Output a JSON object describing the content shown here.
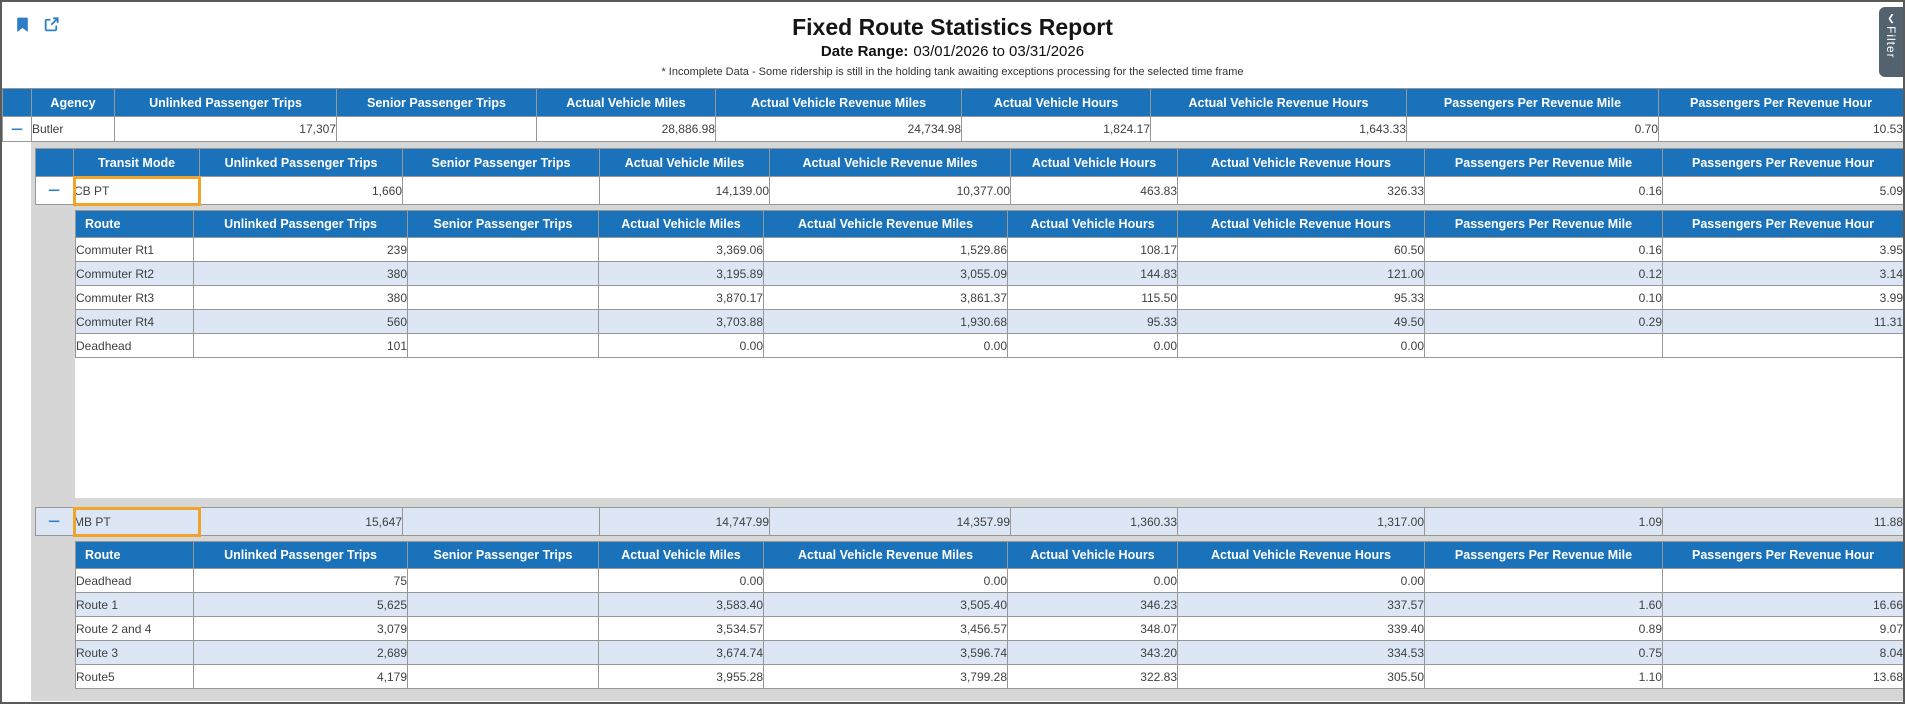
{
  "page": {
    "title": "Fixed Route Statistics Report",
    "date_range": {
      "label": "Date Range:",
      "from": "03/01/2026",
      "to_word": "to",
      "to": "03/31/2026"
    },
    "note": "* Incomplete Data - Some ridership is still in the holding tank awaiting exceptions processing for the selected time frame",
    "filter_tab_label": "Filter"
  },
  "ui": {
    "collapse_glyph": "−",
    "filter_chevron": "❮"
  },
  "colors": {
    "header_blue": "#1a72ba",
    "alt_row_blue": "#dce6f5",
    "highlight_orange": "#f0a42c",
    "icon_blue": "#2d7ec4",
    "filter_tab_bg": "#52636f",
    "detail_gray": "#d6d6d6",
    "grid_border": "#979797"
  },
  "grids": {
    "metric_columns": [
      "Unlinked Passenger Trips",
      "Senior Passenger Trips",
      "Actual Vehicle Miles",
      "Actual Vehicle Revenue Miles",
      "Actual Vehicle Hours",
      "Actual Vehicle Revenue Hours",
      "Passengers Per Revenue Mile",
      "Passengers Per Revenue Hour"
    ],
    "agency": {
      "key_header": "Agency",
      "has_expand": true,
      "rows": [
        {
          "name": "Butler",
          "values": [
            "17,307",
            "",
            "28,886.98",
            "24,734.98",
            "1,824.17",
            "1,643.33",
            "0.70",
            "10.53"
          ]
        }
      ]
    },
    "transit_mode": {
      "key_header": "Transit Mode",
      "has_expand": true,
      "rows": [
        {
          "name": "CB PT",
          "highlighted": true,
          "values": [
            "1,660",
            "",
            "14,139.00",
            "10,377.00",
            "463.83",
            "326.33",
            "0.16",
            "5.09"
          ]
        },
        {
          "name": "MB PT",
          "highlighted": true,
          "values": [
            "15,647",
            "",
            "14,747.99",
            "14,357.99",
            "1,360.33",
            "1,317.00",
            "1.09",
            "11.88"
          ]
        }
      ]
    },
    "routes_cbpt": {
      "key_header": "Route",
      "has_expand": false,
      "rows": [
        {
          "name": "Commuter Rt1",
          "values": [
            "239",
            "",
            "3,369.06",
            "1,529.86",
            "108.17",
            "60.50",
            "0.16",
            "3.95"
          ]
        },
        {
          "name": "Commuter Rt2",
          "values": [
            "380",
            "",
            "3,195.89",
            "3,055.09",
            "144.83",
            "121.00",
            "0.12",
            "3.14"
          ]
        },
        {
          "name": "Commuter Rt3",
          "values": [
            "380",
            "",
            "3,870.17",
            "3,861.37",
            "115.50",
            "95.33",
            "0.10",
            "3.99"
          ]
        },
        {
          "name": "Commuter Rt4",
          "values": [
            "560",
            "",
            "3,703.88",
            "1,930.68",
            "95.33",
            "49.50",
            "0.29",
            "11.31"
          ]
        },
        {
          "name": "Deadhead",
          "values": [
            "101",
            "",
            "0.00",
            "0.00",
            "0.00",
            "0.00",
            "",
            ""
          ]
        }
      ]
    },
    "routes_mbpt": {
      "key_header": "Route",
      "has_expand": false,
      "rows": [
        {
          "name": "Deadhead",
          "values": [
            "75",
            "",
            "0.00",
            "0.00",
            "0.00",
            "0.00",
            "",
            ""
          ]
        },
        {
          "name": "Route 1",
          "values": [
            "5,625",
            "",
            "3,583.40",
            "3,505.40",
            "346.23",
            "337.57",
            "1.60",
            "16.66"
          ]
        },
        {
          "name": "Route 2 and 4",
          "values": [
            "3,079",
            "",
            "3,534.57",
            "3,456.57",
            "348.07",
            "339.40",
            "0.89",
            "9.07"
          ]
        },
        {
          "name": "Route 3",
          "values": [
            "2,689",
            "",
            "3,674.74",
            "3,596.74",
            "343.20",
            "334.53",
            "0.75",
            "8.04"
          ]
        },
        {
          "name": "Route5",
          "values": [
            "4,179",
            "",
            "3,955.28",
            "3,799.28",
            "322.83",
            "305.50",
            "1.10",
            "13.68"
          ]
        }
      ]
    }
  }
}
